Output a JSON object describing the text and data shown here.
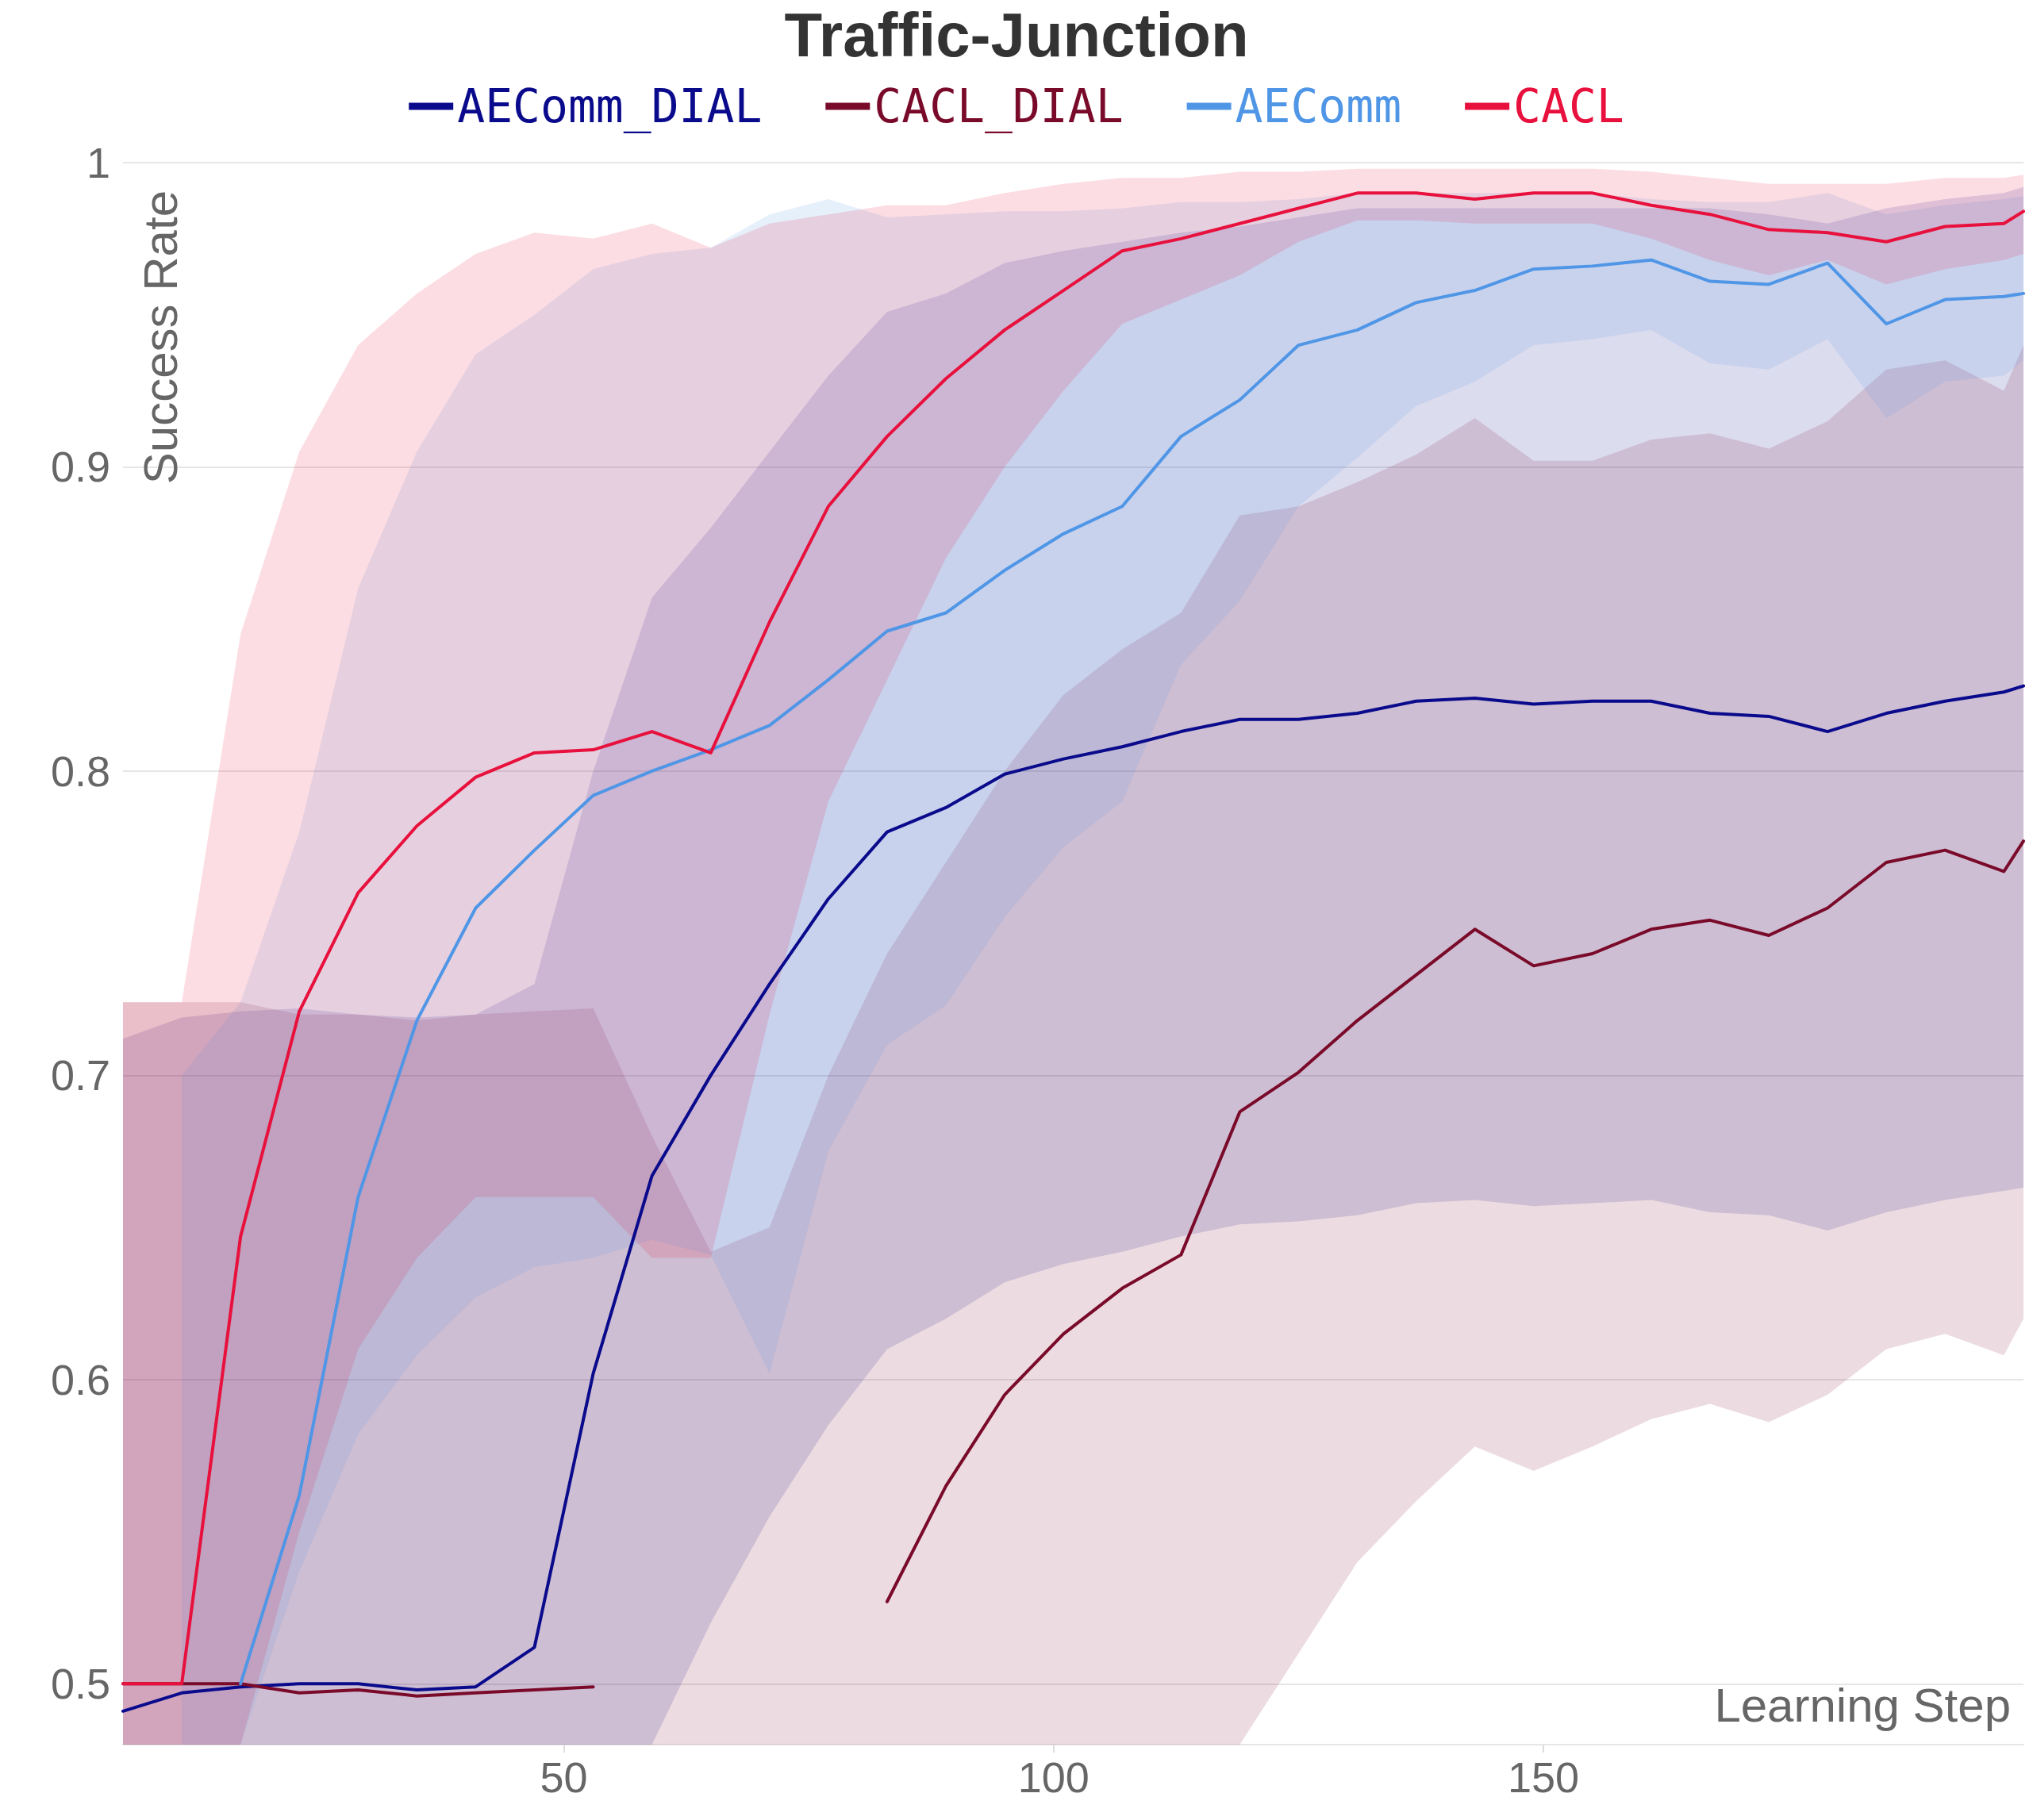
{
  "chart_data": {
    "type": "line",
    "title": "Traffic-Junction",
    "xlabel": "Learning Step",
    "ylabel": "Success Rate",
    "x": [
      5,
      11,
      17,
      23,
      29,
      35,
      41,
      47,
      53,
      59,
      65,
      71,
      77,
      83,
      89,
      95,
      101,
      107,
      113,
      119,
      125,
      131,
      137,
      143,
      149,
      155,
      161,
      167,
      173,
      179,
      185,
      191,
      197,
      199
    ],
    "xlim": [
      5,
      199
    ],
    "xticks": [
      50,
      100,
      150
    ],
    "ylim": [
      0.48,
      1.0
    ],
    "yticks": [
      0.5,
      0.6,
      0.7,
      0.8,
      0.9,
      1
    ],
    "grid": "y",
    "legend": "top",
    "series": [
      {
        "name": "AEComm_DIAL",
        "color": "#0a0a8c",
        "values": [
          0.491,
          0.497,
          0.499,
          0.5,
          0.5,
          0.498,
          0.499,
          0.512,
          0.602,
          0.667,
          0.7,
          0.73,
          0.758,
          0.78,
          0.788,
          0.799,
          0.804,
          0.808,
          0.813,
          0.817,
          0.817,
          0.819,
          0.823,
          0.824,
          0.822,
          0.823,
          0.823,
          0.819,
          0.818,
          0.813,
          0.819,
          0.823,
          0.826,
          0.828
        ],
        "upper": [
          0.712,
          0.719,
          0.721,
          0.722,
          0.72,
          0.719,
          0.72,
          0.73,
          0.8,
          0.857,
          0.88,
          0.905,
          0.93,
          0.951,
          0.957,
          0.967,
          0.971,
          0.974,
          0.977,
          0.979,
          0.982,
          0.985,
          0.985,
          0.985,
          0.985,
          0.985,
          0.985,
          0.985,
          0.983,
          0.98,
          0.985,
          0.988,
          0.99,
          0.992
        ],
        "lower": [
          0.48,
          0.48,
          0.48,
          0.48,
          0.48,
          0.48,
          0.48,
          0.48,
          0.48,
          0.48,
          0.52,
          0.555,
          0.585,
          0.61,
          0.62,
          0.632,
          0.638,
          0.642,
          0.647,
          0.651,
          0.652,
          0.654,
          0.658,
          0.659,
          0.657,
          0.658,
          0.659,
          0.655,
          0.654,
          0.649,
          0.655,
          0.659,
          0.662,
          0.663
        ]
      },
      {
        "name": "CACL_DIAL",
        "color": "#7a0a2a",
        "values": [
          0.5,
          0.5,
          0.5,
          0.497,
          0.498,
          0.496,
          0.497,
          0.498,
          0.499,
          null,
          null,
          null,
          null,
          0.527,
          0.565,
          0.595,
          0.615,
          0.63,
          0.641,
          0.688,
          0.701,
          0.718,
          0.733,
          0.748,
          0.736,
          0.74,
          0.748,
          0.751,
          0.746,
          0.755,
          0.77,
          0.774,
          0.767,
          0.777
        ],
        "upper": [
          0.724,
          0.724,
          0.724,
          0.72,
          0.72,
          0.718,
          0.72,
          0.721,
          0.722,
          0.68,
          0.642,
          0.65,
          0.7,
          0.74,
          0.77,
          0.8,
          0.825,
          0.84,
          0.852,
          0.884,
          0.887,
          0.895,
          0.904,
          0.916,
          0.902,
          0.902,
          0.909,
          0.911,
          0.906,
          0.915,
          0.932,
          0.935,
          0.925,
          0.94
        ],
        "lower": [
          0.48,
          0.48,
          0.48,
          0.48,
          0.48,
          0.48,
          0.48,
          0.48,
          0.48,
          0.48,
          0.48,
          0.48,
          0.48,
          0.48,
          0.48,
          0.48,
          0.48,
          0.48,
          0.48,
          0.48,
          0.51,
          0.54,
          0.56,
          0.578,
          0.57,
          0.578,
          0.587,
          0.592,
          0.586,
          0.595,
          0.61,
          0.615,
          0.608,
          0.62
        ]
      },
      {
        "name": "AEComm",
        "color": "#5096e6",
        "values": [
          null,
          null,
          0.5,
          0.562,
          0.66,
          0.718,
          0.755,
          0.774,
          0.792,
          0.8,
          0.807,
          0.815,
          0.83,
          0.846,
          0.852,
          0.866,
          0.878,
          0.887,
          0.91,
          0.922,
          0.94,
          0.945,
          0.954,
          0.958,
          0.965,
          0.966,
          0.968,
          0.961,
          0.96,
          0.967,
          0.947,
          0.955,
          0.956,
          0.957
        ],
        "upper": [
          null,
          0.7,
          0.724,
          0.78,
          0.86,
          0.905,
          0.937,
          0.95,
          0.965,
          0.97,
          0.972,
          0.983,
          0.988,
          0.982,
          0.983,
          0.984,
          0.984,
          0.985,
          0.987,
          0.987,
          0.988,
          0.99,
          0.99,
          0.99,
          0.99,
          0.99,
          0.988,
          0.987,
          0.987,
          0.99,
          0.983,
          0.986,
          0.988,
          0.989
        ],
        "lower": [
          null,
          0.48,
          0.48,
          0.537,
          0.582,
          0.608,
          0.627,
          0.637,
          0.64,
          0.646,
          0.641,
          0.602,
          0.675,
          0.71,
          0.723,
          0.752,
          0.775,
          0.79,
          0.835,
          0.856,
          0.887,
          0.903,
          0.92,
          0.928,
          0.94,
          0.942,
          0.945,
          0.934,
          0.932,
          0.942,
          0.916,
          0.928,
          0.93,
          0.935
        ]
      },
      {
        "name": "CACL",
        "color": "#e8103c",
        "values": [
          0.5,
          0.5,
          0.647,
          0.721,
          0.76,
          0.782,
          0.798,
          0.806,
          0.807,
          0.813,
          0.806,
          0.849,
          0.887,
          0.91,
          0.929,
          0.945,
          0.958,
          0.971,
          0.975,
          0.98,
          0.985,
          0.99,
          0.99,
          0.988,
          0.99,
          0.99,
          0.986,
          0.983,
          0.978,
          0.977,
          0.974,
          0.979,
          0.98,
          0.984
        ],
        "upper": [
          0.724,
          0.724,
          0.845,
          0.905,
          0.94,
          0.957,
          0.97,
          0.977,
          0.975,
          0.98,
          0.972,
          0.98,
          0.983,
          0.986,
          0.986,
          0.99,
          0.993,
          0.995,
          0.995,
          0.997,
          0.997,
          0.998,
          0.998,
          0.998,
          0.998,
          0.998,
          0.997,
          0.995,
          0.993,
          0.993,
          0.993,
          0.995,
          0.995,
          0.996
        ],
        "lower": [
          0.48,
          0.48,
          0.48,
          0.55,
          0.61,
          0.64,
          0.66,
          0.66,
          0.66,
          0.64,
          0.64,
          0.72,
          0.79,
          0.83,
          0.87,
          0.9,
          0.925,
          0.947,
          0.955,
          0.963,
          0.974,
          0.981,
          0.981,
          0.98,
          0.98,
          0.98,
          0.975,
          0.968,
          0.963,
          0.968,
          0.96,
          0.965,
          0.968,
          0.97
        ]
      }
    ]
  }
}
